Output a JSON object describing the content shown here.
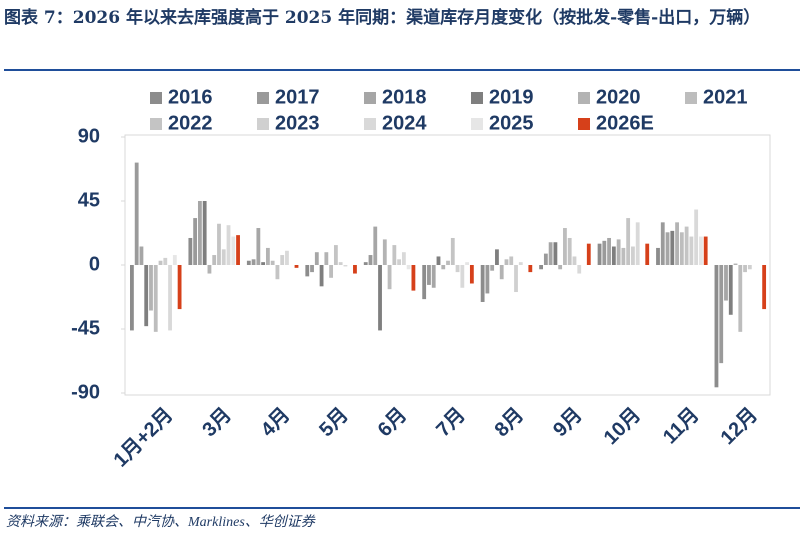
{
  "chart_data": {
    "type": "bar",
    "title": "图表 7：2026 年以来去库强度高于 2025 年同期：渠道库存月度变化（按批发-零售-出口，万辆）",
    "source": "资料来源：乘联会、中汽协、Marklines、华创证券",
    "categories": [
      "1月+2月",
      "3月",
      "4月",
      "5月",
      "6月",
      "7月",
      "8月",
      "9月",
      "10月",
      "11月",
      "12月"
    ],
    "series": [
      {
        "name": "2016",
        "color": "#8c8c8c",
        "values": [
          -46,
          19,
          3,
          -8,
          2,
          -24,
          -26,
          -3,
          15,
          12,
          -86
        ]
      },
      {
        "name": "2017",
        "color": "#9a9a9a",
        "values": [
          72,
          33,
          4,
          -5,
          7,
          -14,
          -20,
          8,
          17,
          30,
          -69
        ]
      },
      {
        "name": "2018",
        "color": "#a6a6a6",
        "values": [
          13,
          45,
          26,
          9,
          27,
          -16,
          -4,
          16,
          19,
          23,
          -25
        ]
      },
      {
        "name": "2019",
        "color": "#7f7f7f",
        "values": [
          -43,
          45,
          2,
          -15,
          -46,
          6,
          11,
          16,
          13,
          24,
          -35
        ]
      },
      {
        "name": "2020",
        "color": "#b3b3b3",
        "values": [
          -32,
          -6,
          12,
          9,
          18,
          -3,
          -10,
          -3,
          18,
          30,
          1
        ]
      },
      {
        "name": "2021",
        "color": "#bdbdbd",
        "values": [
          -47,
          7,
          3,
          -9,
          -17,
          3,
          4,
          26,
          12,
          23,
          -47
        ]
      },
      {
        "name": "2022",
        "color": "#c4c4c4",
        "values": [
          3,
          29,
          -10,
          14,
          14,
          19,
          6,
          19,
          33,
          27,
          -5
        ]
      },
      {
        "name": "2023",
        "color": "#d0d0d0",
        "values": [
          5,
          11,
          7,
          2,
          4,
          -5,
          -19,
          6,
          13,
          20,
          -3
        ]
      },
      {
        "name": "2024",
        "color": "#d9d9d9",
        "values": [
          -46,
          28,
          10,
          -1,
          9,
          -16,
          2,
          -6,
          30,
          39,
          0
        ]
      },
      {
        "name": "2025",
        "color": "#e6e6e6",
        "values": [
          7,
          20,
          0,
          0,
          -3,
          2,
          0,
          0,
          0,
          20,
          0
        ]
      },
      {
        "name": "2026E",
        "color": "#d6401a",
        "values": [
          -31,
          21,
          -2,
          -6,
          -18,
          -13,
          -5,
          15,
          15,
          20,
          -31
        ]
      }
    ],
    "ylim": [
      -90,
      90
    ],
    "yticks": [
      -90,
      -45,
      0,
      45,
      90
    ]
  }
}
